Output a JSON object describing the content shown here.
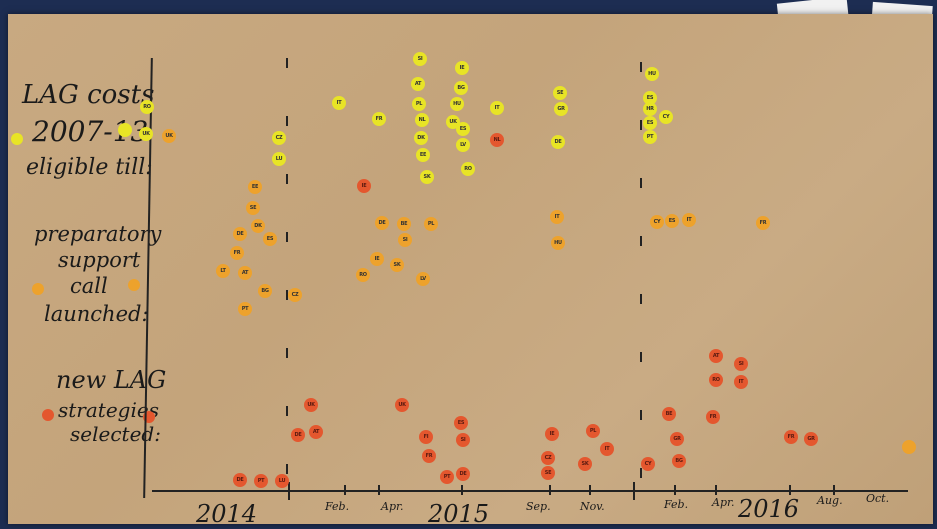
{
  "labels": {
    "lag_costs": [
      "LAG costs",
      "2007-13",
      "eligible till:"
    ],
    "prep_support": [
      "preparatory",
      "support",
      "call",
      "launched:"
    ],
    "new_lag": [
      "new LAG",
      "strategies",
      "selected:"
    ]
  },
  "years": [
    "2014",
    "2015",
    "2016"
  ],
  "months": [
    "Feb.",
    "Apr.",
    "Sep.",
    "Nov.",
    "Feb.",
    "Apr.",
    "Aug.",
    "Oct."
  ],
  "colors": {
    "yellow": "#e8e426",
    "orange": "#eda22c",
    "red": "#e4572e"
  },
  "dots": {
    "yellow": [
      {
        "t": "RO"
      },
      {
        "t": "UK"
      },
      {
        "t": "CZ"
      },
      {
        "t": "LU"
      },
      {
        "t": "IT"
      },
      {
        "t": "FR"
      },
      {
        "t": "SI"
      },
      {
        "t": "AT"
      },
      {
        "t": "PL"
      },
      {
        "t": "NL"
      },
      {
        "t": "DK"
      },
      {
        "t": "EE"
      },
      {
        "t": "SK"
      },
      {
        "t": "IE"
      },
      {
        "t": "BG"
      },
      {
        "t": "HU"
      },
      {
        "t": "UK"
      },
      {
        "t": "ES"
      },
      {
        "t": "LV"
      },
      {
        "t": "RO"
      },
      {
        "t": "IT"
      },
      {
        "t": "SE"
      },
      {
        "t": "GR"
      },
      {
        "t": "DE"
      },
      {
        "t": "HU"
      },
      {
        "t": "ES"
      },
      {
        "t": "HR"
      },
      {
        "t": "ES"
      },
      {
        "t": "CY"
      },
      {
        "t": "PT"
      }
    ],
    "orange": [
      {
        "t": "UK"
      },
      {
        "t": "EE"
      },
      {
        "t": "SE"
      },
      {
        "t": "DK"
      },
      {
        "t": "DE"
      },
      {
        "t": "ES"
      },
      {
        "t": "FR"
      },
      {
        "t": "LT"
      },
      {
        "t": "AT"
      },
      {
        "t": "BG"
      },
      {
        "t": "PT"
      },
      {
        "t": "CZ"
      },
      {
        "t": "DE"
      },
      {
        "t": "BE"
      },
      {
        "t": "SI"
      },
      {
        "t": "PL"
      },
      {
        "t": "IE"
      },
      {
        "t": "SK"
      },
      {
        "t": "RO"
      },
      {
        "t": "LV"
      },
      {
        "t": "IT"
      },
      {
        "t": "HU"
      },
      {
        "t": "CY"
      },
      {
        "t": "ES"
      },
      {
        "t": "IT"
      },
      {
        "t": "FR"
      }
    ],
    "red": [
      {
        "t": "IE"
      },
      {
        "t": "NL"
      },
      {
        "t": "UK"
      },
      {
        "t": "DE"
      },
      {
        "t": "AT"
      },
      {
        "t": "UK"
      },
      {
        "t": "DE"
      },
      {
        "t": "PT"
      },
      {
        "t": "LU"
      },
      {
        "t": "ES"
      },
      {
        "t": "FI"
      },
      {
        "t": "SI"
      },
      {
        "t": "FR"
      },
      {
        "t": "PT"
      },
      {
        "t": "DE"
      },
      {
        "t": "IE"
      },
      {
        "t": "CZ"
      },
      {
        "t": "SE"
      },
      {
        "t": "PL"
      },
      {
        "t": "SK"
      },
      {
        "t": "IT"
      },
      {
        "t": "BE"
      },
      {
        "t": "GR"
      },
      {
        "t": "CY"
      },
      {
        "t": "BG"
      },
      {
        "t": "FR"
      },
      {
        "t": "AT"
      },
      {
        "t": "RO"
      },
      {
        "t": "SI"
      },
      {
        "t": "IT"
      },
      {
        "t": "FR"
      },
      {
        "t": "GR"
      }
    ]
  }
}
